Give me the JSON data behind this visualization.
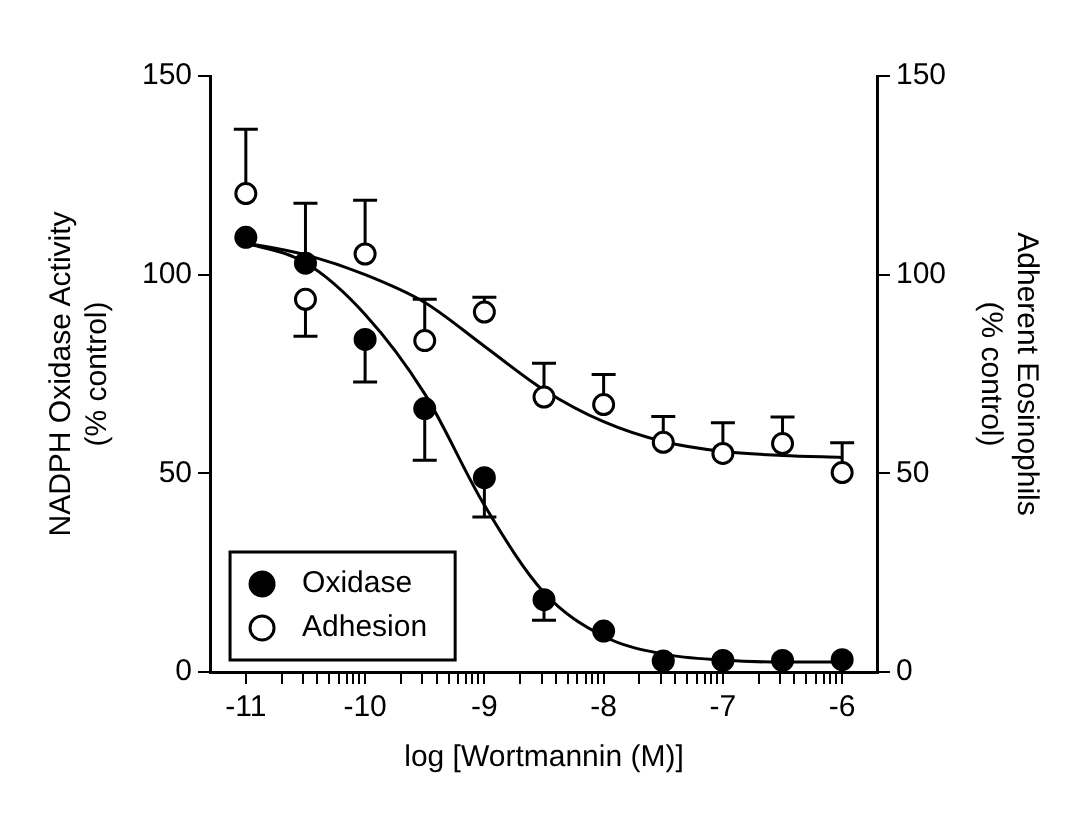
{
  "chart_data": {
    "type": "scatter",
    "xlabel": "log [Wortmannin (M)]",
    "ylabel": "NADPH Oxidase Activity\n(% control)",
    "y2label": "Adherent Eosinophils\n(% control)",
    "xlim": [
      -11.3,
      -5.7
    ],
    "xticks": [
      -11,
      {
        "value": -10.7,
        "label": null
      },
      {
        "value": -10.52,
        "label": null
      },
      {
        "value": -10.4,
        "label": null
      },
      {
        "value": -10.3,
        "label": null
      },
      {
        "value": -10.22,
        "label": null
      },
      {
        "value": -10.15,
        "label": null
      },
      {
        "value": -10.1,
        "label": null
      },
      {
        "value": -10.05,
        "label": null
      },
      -10,
      {
        "value": -9.7,
        "label": null
      },
      {
        "value": -9.52,
        "label": null
      },
      {
        "value": -9.4,
        "label": null
      },
      {
        "value": -9.3,
        "label": null
      },
      {
        "value": -9.22,
        "label": null
      },
      {
        "value": -9.15,
        "label": null
      },
      {
        "value": -9.1,
        "label": null
      },
      {
        "value": -9.05,
        "label": null
      },
      -9,
      {
        "value": -8.7,
        "label": null
      },
      {
        "value": -8.52,
        "label": null
      },
      {
        "value": -8.4,
        "label": null
      },
      {
        "value": -8.3,
        "label": null
      },
      {
        "value": -8.22,
        "label": null
      },
      {
        "value": -8.15,
        "label": null
      },
      {
        "value": -8.1,
        "label": null
      },
      {
        "value": -8.05,
        "label": null
      },
      -8,
      {
        "value": -7.7,
        "label": null
      },
      {
        "value": -7.52,
        "label": null
      },
      {
        "value": -7.4,
        "label": null
      },
      {
        "value": -7.3,
        "label": null
      },
      {
        "value": -7.22,
        "label": null
      },
      {
        "value": -7.15,
        "label": null
      },
      {
        "value": -7.1,
        "label": null
      },
      {
        "value": -7.05,
        "label": null
      },
      -7,
      {
        "value": -6.7,
        "label": null
      },
      {
        "value": -6.52,
        "label": null
      },
      {
        "value": -6.4,
        "label": null
      },
      {
        "value": -6.3,
        "label": null
      },
      {
        "value": -6.22,
        "label": null
      },
      {
        "value": -6.15,
        "label": null
      },
      {
        "value": -6.1,
        "label": null
      },
      {
        "value": -6.05,
        "label": null
      },
      -6
    ],
    "ylim": [
      0,
      150
    ],
    "yticks": [
      0,
      50,
      100,
      150
    ],
    "y2lim": [
      0,
      150
    ],
    "y2ticks": [
      0,
      50,
      100,
      150
    ],
    "grid": false,
    "legend": "bottom left",
    "marker": "circle",
    "series": [
      {
        "name": "Oxidase",
        "color": "#000000",
        "x": [
          -11,
          -10.5,
          -10,
          -9.5,
          -9,
          -8.5,
          -8,
          -7.5,
          -7,
          -6.5,
          -6
        ],
        "values": [
          109.4,
          102.9,
          83.7,
          66.3,
          48.9,
          18.2,
          10.3,
          2.8,
          2.9,
          2.9,
          3.1
        ],
        "errors": [
          null,
          [
            102.9,
            118
          ],
          [
            73,
            83.7
          ],
          [
            53.3,
            66.3
          ],
          [
            39,
            48.9
          ],
          [
            13,
            18.2
          ],
          null,
          null,
          null,
          null,
          null
        ]
      },
      {
        "name": "Adhesion",
        "color": "#ffffff",
        "x": [
          -11,
          -10.5,
          -10,
          -9.5,
          -9,
          -8.5,
          -8,
          -7.5,
          -7,
          -6.5,
          -6
        ],
        "values": [
          120.4,
          93.8,
          105.2,
          83.4,
          90.6,
          69.2,
          67.3,
          57.8,
          55,
          57.5,
          50.2
        ],
        "errors": [
          [
            120.4,
            136.6
          ],
          [
            84.5,
            93.8
          ],
          [
            105.2,
            118.7
          ],
          [
            83.4,
            93.8
          ],
          [
            90.6,
            94.3
          ],
          [
            69.2,
            77.7
          ],
          [
            67.3,
            74.9
          ],
          [
            57.8,
            64.3
          ],
          [
            55,
            62.7
          ],
          [
            57.5,
            64.2
          ],
          [
            50.2,
            57.7
          ]
        ]
      },
      {
        "type": "line",
        "color": "#000000",
        "marker": "none",
        "x": [
          -11,
          -10.5,
          -10,
          -9.5,
          -9,
          -8.5,
          -8,
          -7.5,
          -7,
          -6.5,
          -6
        ],
        "values": [
          108,
          103,
          90,
          70,
          42,
          20,
          9,
          4.5,
          3,
          2.5,
          2.5
        ]
      },
      {
        "type": "line",
        "color": "#000000",
        "marker": "none",
        "x": [
          -11,
          -10.5,
          -10,
          -9.5,
          -9,
          -8.5,
          -8,
          -7.5,
          -7,
          -6.5,
          -6
        ],
        "values": [
          108,
          105,
          100,
          93,
          82,
          71,
          63,
          58,
          55.5,
          54.5,
          54
        ]
      }
    ]
  }
}
